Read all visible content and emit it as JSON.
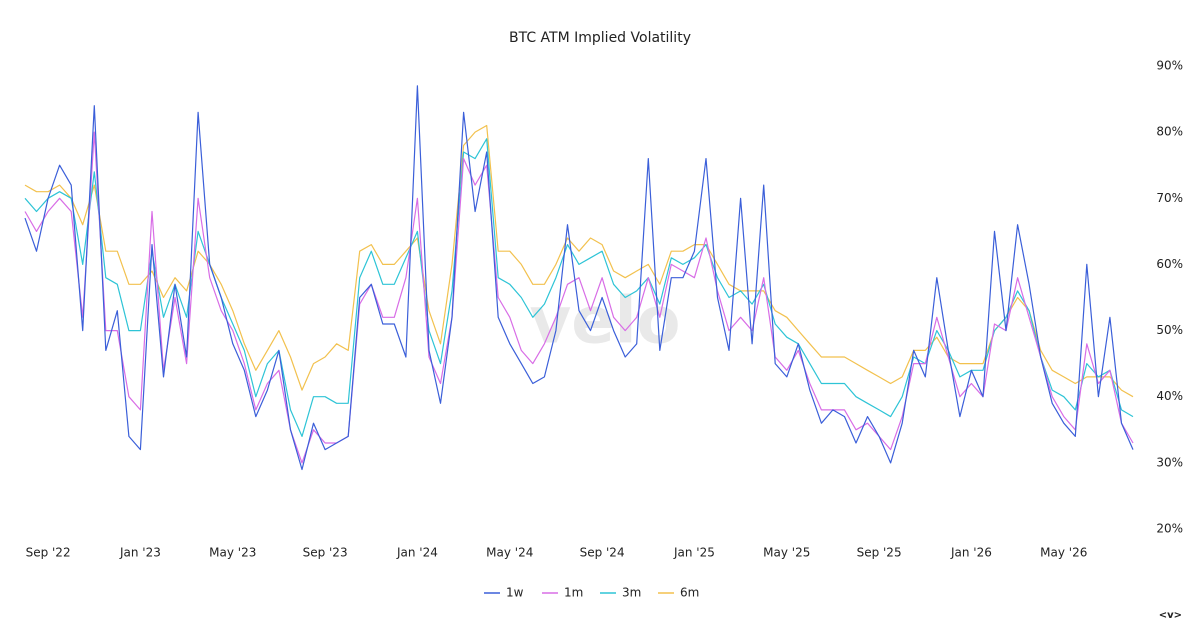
{
  "chart_data": {
    "type": "line",
    "title": "BTC ATM Implied Volatility",
    "watermark": "velo",
    "footer_mark": "<v>",
    "categories": [
      null,
      null,
      "Sep '22",
      null,
      null,
      null,
      null,
      null,
      null,
      null,
      "Jan '23",
      null,
      null,
      null,
      null,
      null,
      null,
      null,
      "May '23",
      null,
      null,
      null,
      null,
      null,
      null,
      null,
      "Sep '23",
      null,
      null,
      null,
      null,
      null,
      null,
      null,
      "Jan '24",
      null,
      null,
      null,
      null,
      null,
      null,
      null,
      "May '24",
      null,
      null,
      null,
      null,
      null,
      null,
      null,
      "Sep '24",
      null,
      null,
      null,
      null,
      null,
      null,
      null,
      "Jan '25",
      null,
      null,
      null,
      null,
      null,
      null,
      null,
      "May '25",
      null,
      null,
      null,
      null,
      null,
      null,
      null,
      "Sep '25",
      null,
      null,
      null,
      null,
      null,
      null,
      null,
      "Jan '26",
      null,
      null,
      null,
      null,
      null,
      null,
      null,
      "May '26",
      null,
      null,
      null,
      null,
      null,
      null
    ],
    "series": [
      {
        "name": "1w",
        "color": "#3b5fd9",
        "values": [
          67,
          62,
          70,
          75,
          72,
          50,
          84,
          47,
          53,
          34,
          32,
          63,
          43,
          57,
          46,
          83,
          60,
          55,
          48,
          44,
          37,
          41,
          47,
          35,
          29,
          36,
          32,
          33,
          34,
          55,
          57,
          51,
          51,
          46,
          87,
          47,
          39,
          52,
          83,
          68,
          77,
          52,
          48,
          45,
          42,
          43,
          50,
          66,
          53,
          50,
          55,
          50,
          46,
          48,
          76,
          47,
          58,
          58,
          62,
          76,
          55,
          47,
          70,
          48,
          72,
          45,
          43,
          48,
          41,
          36,
          38,
          37,
          33,
          37,
          34,
          30,
          36,
          47,
          43,
          58,
          47,
          37,
          44,
          40,
          65,
          50,
          66,
          57,
          46,
          39,
          36,
          34,
          60,
          40,
          52,
          36,
          32
        ]
      },
      {
        "name": "1m",
        "color": "#d86de6",
        "values": [
          68,
          65,
          68,
          70,
          68,
          52,
          80,
          50,
          50,
          40,
          38,
          68,
          44,
          55,
          45,
          70,
          58,
          53,
          50,
          45,
          38,
          42,
          44,
          35,
          30,
          35,
          33,
          33,
          34,
          54,
          57,
          52,
          52,
          58,
          70,
          46,
          42,
          52,
          76,
          72,
          75,
          55,
          52,
          47,
          45,
          48,
          52,
          57,
          58,
          53,
          58,
          52,
          50,
          52,
          58,
          52,
          60,
          59,
          58,
          64,
          56,
          50,
          52,
          50,
          58,
          46,
          44,
          47,
          42,
          38,
          38,
          38,
          35,
          36,
          34,
          32,
          37,
          45,
          45,
          52,
          46,
          40,
          42,
          40,
          51,
          50,
          58,
          52,
          46,
          40,
          37,
          35,
          48,
          42,
          44,
          36,
          33
        ]
      },
      {
        "name": "3m",
        "color": "#2ec4d6",
        "values": [
          70,
          68,
          70,
          71,
          70,
          60,
          74,
          58,
          57,
          50,
          50,
          62,
          52,
          57,
          52,
          65,
          60,
          55,
          51,
          47,
          40,
          45,
          47,
          38,
          34,
          40,
          40,
          39,
          39,
          58,
          62,
          57,
          57,
          61,
          65,
          50,
          45,
          56,
          77,
          76,
          79,
          58,
          57,
          55,
          52,
          54,
          58,
          63,
          60,
          61,
          62,
          57,
          55,
          56,
          58,
          54,
          61,
          60,
          61,
          63,
          58,
          55,
          56,
          54,
          57,
          51,
          49,
          48,
          45,
          42,
          42,
          42,
          40,
          39,
          38,
          37,
          40,
          46,
          45,
          50,
          47,
          43,
          44,
          44,
          50,
          52,
          56,
          53,
          46,
          41,
          40,
          38,
          45,
          43,
          44,
          38,
          37
        ]
      },
      {
        "name": "6m",
        "color": "#f2c14e",
        "values": [
          72,
          71,
          71,
          72,
          70,
          66,
          72,
          62,
          62,
          57,
          57,
          59,
          55,
          58,
          56,
          62,
          60,
          57,
          53,
          48,
          44,
          47,
          50,
          46,
          41,
          45,
          46,
          48,
          47,
          62,
          63,
          60,
          60,
          62,
          64,
          53,
          48,
          60,
          78,
          80,
          81,
          62,
          62,
          60,
          57,
          57,
          60,
          64,
          62,
          64,
          63,
          59,
          58,
          59,
          60,
          57,
          62,
          62,
          63,
          63,
          60,
          57,
          56,
          56,
          56,
          53,
          52,
          50,
          48,
          46,
          46,
          46,
          45,
          44,
          43,
          42,
          43,
          47,
          47,
          49,
          46,
          45,
          45,
          45,
          50,
          52,
          55,
          53,
          47,
          44,
          43,
          42,
          43,
          43,
          43,
          41,
          40
        ]
      }
    ],
    "ylim": [
      20,
      90
    ],
    "yticks": [
      {
        "value": 20,
        "label": "20%"
      },
      {
        "value": 30,
        "label": "30%"
      },
      {
        "value": 40,
        "label": "40%"
      },
      {
        "value": 50,
        "label": "50%"
      },
      {
        "value": 60,
        "label": "60%"
      },
      {
        "value": 70,
        "label": "70%"
      },
      {
        "value": 80,
        "label": "80%"
      },
      {
        "value": 90,
        "label": "90%"
      }
    ],
    "grid": false,
    "legend": "bottom"
  }
}
